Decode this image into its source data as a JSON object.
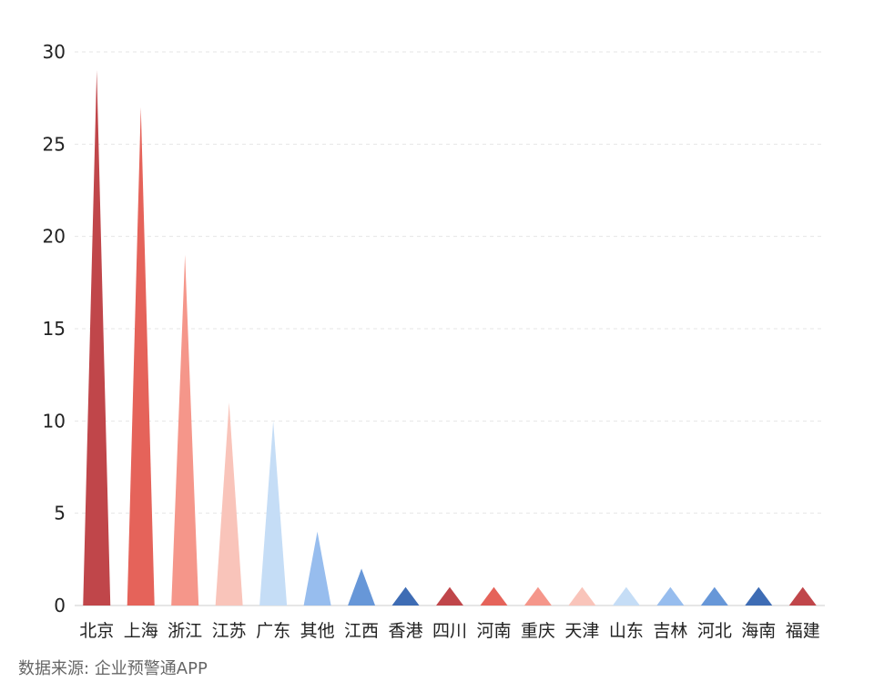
{
  "chart_data": {
    "type": "bar",
    "mark_shape": "triangle",
    "categories": [
      "北京",
      "上海",
      "浙江",
      "江苏",
      "广东",
      "其他",
      "江西",
      "香港",
      "四川",
      "河南",
      "重庆",
      "天津",
      "山东",
      "吉林",
      "河北",
      "海南",
      "福建"
    ],
    "values": [
      29,
      27,
      19,
      11,
      10,
      4,
      2,
      1,
      1,
      1,
      1,
      1,
      1,
      1,
      1,
      1,
      1
    ],
    "ylim": [
      0,
      30
    ],
    "yticks": [
      0,
      5,
      10,
      15,
      20,
      25,
      30
    ],
    "grid": true,
    "colors": [
      "#c0464a",
      "#e5635a",
      "#f5968a",
      "#f9c4ba",
      "#c5ddf6",
      "#97bdee",
      "#6797d8",
      "#3e6cb4",
      "#c0464a",
      "#e5635a",
      "#f5968a",
      "#f9c4ba",
      "#c5ddf6",
      "#97bdee",
      "#6797d8",
      "#3e6cb4",
      "#c0464a"
    ]
  },
  "source": "数据来源: 企业预警通APP"
}
